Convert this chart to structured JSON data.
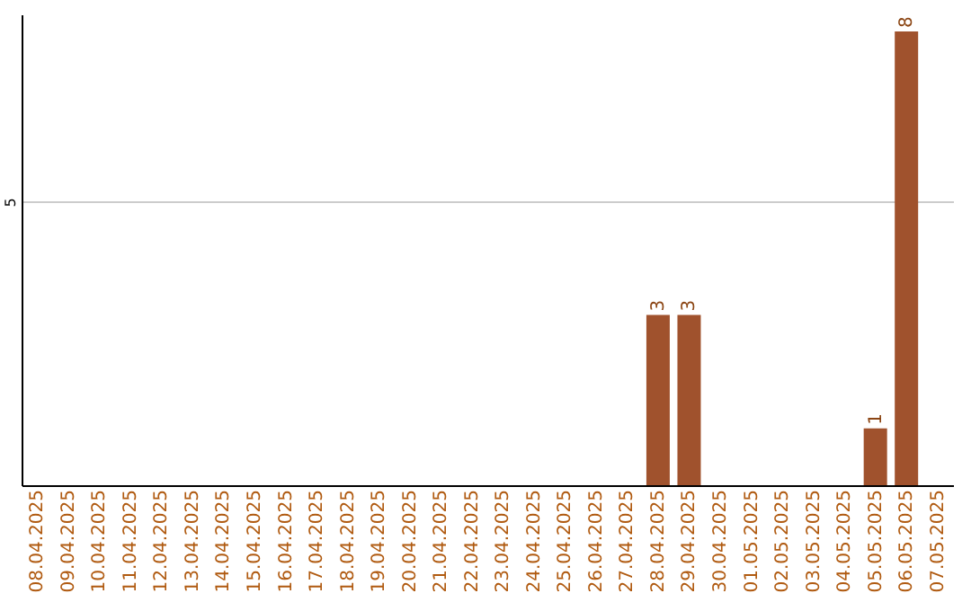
{
  "chart_data": {
    "type": "bar",
    "categories": [
      "08.04.2025",
      "09.04.2025",
      "10.04.2025",
      "11.04.2025",
      "12.04.2025",
      "13.04.2025",
      "14.04.2025",
      "15.04.2025",
      "16.04.2025",
      "17.04.2025",
      "18.04.2025",
      "19.04.2025",
      "20.04.2025",
      "21.04.2025",
      "22.04.2025",
      "23.04.2025",
      "24.04.2025",
      "25.04.2025",
      "26.04.2025",
      "27.04.2025",
      "28.04.2025",
      "29.04.2025",
      "30.04.2025",
      "01.05.2025",
      "02.05.2025",
      "03.05.2025",
      "04.05.2025",
      "05.05.2025",
      "06.05.2025",
      "07.05.2025"
    ],
    "values": [
      null,
      null,
      null,
      null,
      null,
      null,
      null,
      null,
      null,
      null,
      null,
      null,
      null,
      null,
      null,
      null,
      null,
      null,
      null,
      null,
      3,
      3,
      null,
      null,
      null,
      null,
      null,
      1,
      8,
      null
    ],
    "data_labels": true,
    "color": "#a0522d",
    "ylim": [
      0,
      8.3
    ],
    "yticks": [
      5
    ],
    "grid": "y"
  }
}
